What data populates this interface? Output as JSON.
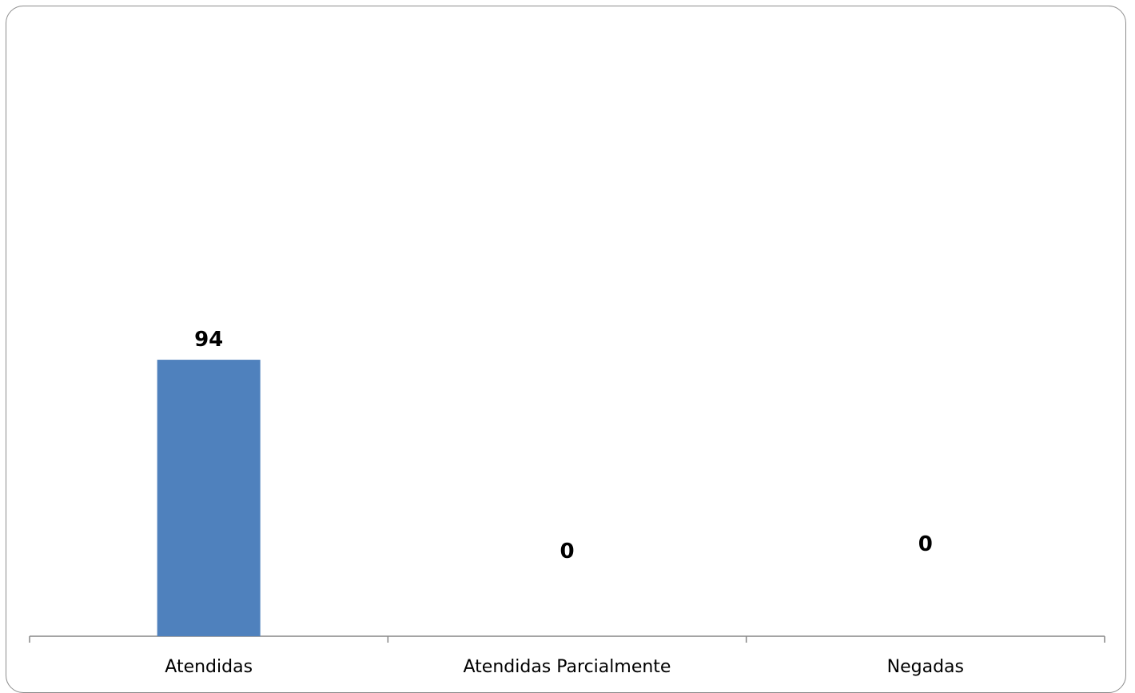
{
  "chart_data": {
    "type": "bar",
    "categories": [
      "Atendidas",
      "Atendidas Parcialmente",
      "Negadas"
    ],
    "values": [
      94,
      0,
      0
    ],
    "data_labels": [
      "94",
      "0",
      "0"
    ],
    "title": "",
    "xlabel": "",
    "ylabel": "",
    "ylim": [
      0,
      200
    ],
    "grid": false,
    "legend": "none",
    "bar_color": "#4f81bd",
    "axis_color": "#868686"
  }
}
